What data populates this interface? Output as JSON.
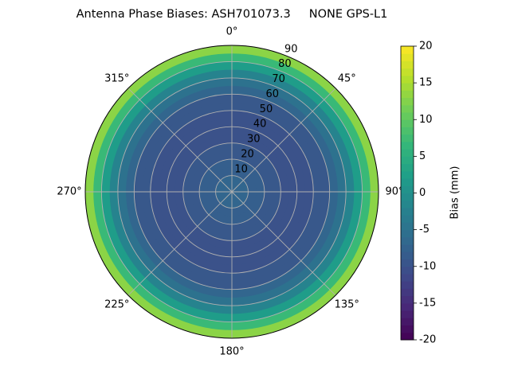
{
  "chart_data": {
    "type": "polar_contour",
    "title": "Antenna Phase Biases: ASH701073.3     NONE GPS-L1",
    "x": [
      2.5,
      7.5,
      12.5,
      17.5,
      22.5,
      27.5,
      32.5,
      37.5,
      42.5,
      47.5,
      52.5,
      57.5,
      62.5,
      67.5,
      72.5,
      77.5,
      82.5,
      87.5
    ],
    "values": [
      -7,
      -7,
      -8,
      -8,
      -9,
      -9,
      -10,
      -10,
      -10,
      -10,
      -9,
      -9,
      -7,
      -5,
      -2,
      2,
      7,
      13
    ],
    "colormap": "viridis",
    "rlim": [
      0,
      90
    ],
    "rticks": [
      10,
      20,
      30,
      40,
      50,
      60,
      70,
      80,
      90
    ],
    "thetaticks": [
      {
        "value": 0,
        "label": "0°"
      },
      {
        "value": 45,
        "label": "45°"
      },
      {
        "value": 90,
        "label": "90°"
      },
      {
        "value": 135,
        "label": "135°"
      },
      {
        "value": 180,
        "label": "180°"
      },
      {
        "value": 225,
        "label": "225°"
      },
      {
        "value": 270,
        "label": "270°"
      },
      {
        "value": 315,
        "label": "315°"
      }
    ],
    "clim": [
      -20,
      20
    ],
    "cticks": [
      -20,
      -15,
      -10,
      -5,
      0,
      5,
      10,
      15,
      20
    ],
    "colorbar_label": "Bias (mm)",
    "grid": true
  }
}
